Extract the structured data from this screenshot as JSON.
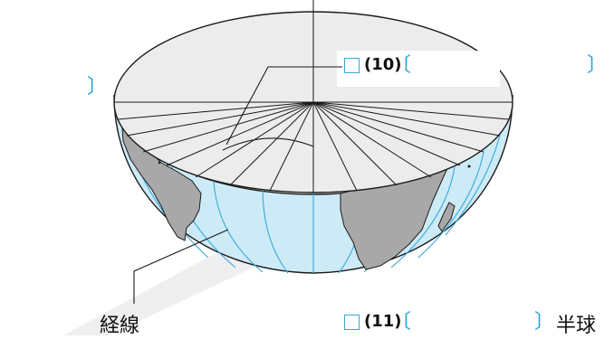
{
  "labels": {
    "meridian": "経線",
    "q10_number": "(10)",
    "q11_number": "(11)",
    "hemisphere_suffix": "半球"
  },
  "colors": {
    "ocean": "#cdeaf7",
    "meridian_line": "#39a9da",
    "land": "#a8a8a8",
    "cut_face": "#ececec",
    "outline": "#1a1a1a",
    "answer_box": "#3aa6d8",
    "bracket": "#27a0d6",
    "watermark": "#ececec"
  },
  "icons": {
    "answer_box": "checkbox-square",
    "bracket_open": "〔",
    "bracket_close": "〕"
  }
}
